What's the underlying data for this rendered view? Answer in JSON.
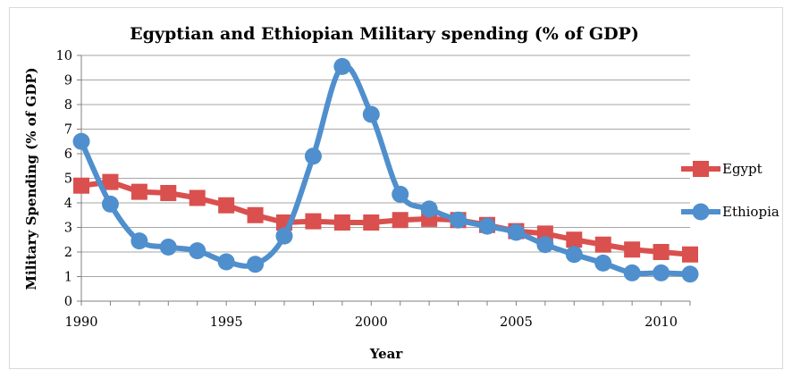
{
  "chart_data": {
    "type": "line",
    "title": "Egyptian and Ethiopian Military spending (% of GDP)",
    "xlabel": "Year",
    "ylabel": "Military Spending (% of GDP)",
    "xlim": [
      1990,
      2011
    ],
    "ylim": [
      0,
      10
    ],
    "x_ticks": [
      1990,
      1995,
      2000,
      2005,
      2010
    ],
    "y_ticks": [
      0,
      1,
      2,
      3,
      4,
      5,
      6,
      7,
      8,
      9,
      10
    ],
    "grid": "horizontal",
    "legend_position": "right",
    "x": [
      1990,
      1991,
      1992,
      1993,
      1994,
      1995,
      1996,
      1997,
      1998,
      1999,
      2000,
      2001,
      2002,
      2003,
      2004,
      2005,
      2006,
      2007,
      2008,
      2009,
      2010,
      2011
    ],
    "series": [
      {
        "name": "Egypt",
        "color": "#d9504e",
        "marker": "square",
        "values": [
          4.7,
          4.85,
          4.45,
          4.4,
          4.2,
          3.9,
          3.5,
          3.2,
          3.25,
          3.2,
          3.2,
          3.3,
          3.35,
          3.3,
          3.1,
          2.85,
          2.75,
          2.5,
          2.3,
          2.1,
          2.0,
          1.9
        ]
      },
      {
        "name": "Ethiopia",
        "color": "#4f8fcd",
        "marker": "circle",
        "values": [
          6.5,
          3.95,
          2.45,
          2.2,
          2.05,
          1.6,
          1.5,
          2.65,
          5.9,
          9.55,
          7.6,
          4.35,
          3.75,
          3.3,
          3.05,
          2.8,
          2.3,
          1.9,
          1.55,
          1.15,
          1.15,
          1.1
        ]
      }
    ]
  }
}
